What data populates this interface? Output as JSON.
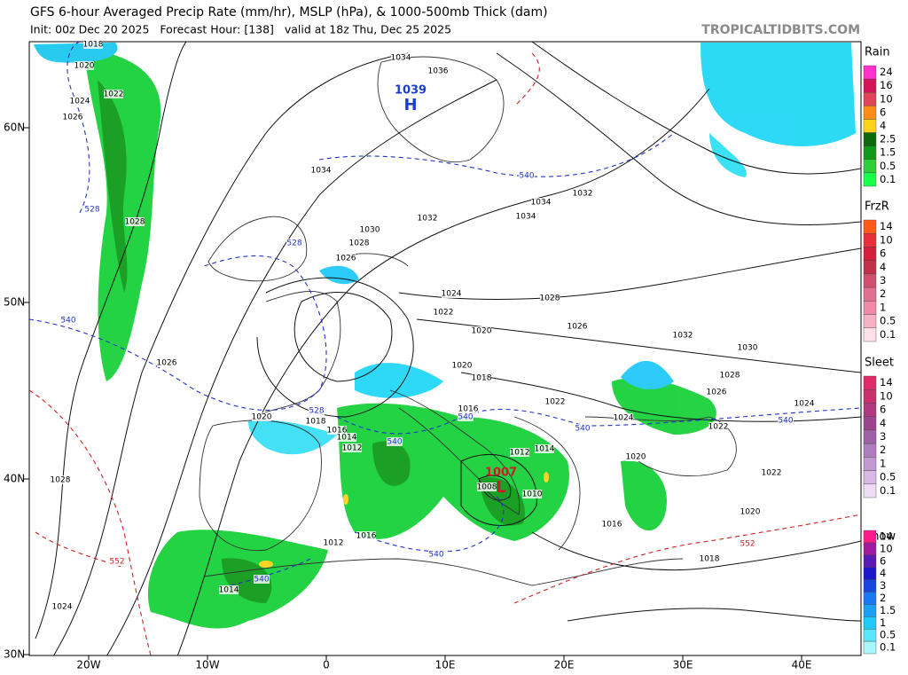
{
  "header": {
    "title": "GFS 6-hour Averaged Precip Rate (mm/hr), MSLP (hPa), & 1000-500mb Thick (dam)",
    "subtitle": "Init: 00z Dec 20 2025   Forecast Hour: [138]   valid at 18z Thu, Dec 25 2025",
    "site": "TROPICALTIDBITS.COM"
  },
  "map": {
    "lat_labels": [
      "60N",
      "50N",
      "40N",
      "30N"
    ],
    "lon_labels": [
      "20W",
      "10W",
      "0",
      "10E",
      "20E",
      "30E",
      "40E"
    ],
    "pressure_labels": [
      "1034",
      "1036",
      "1018",
      "1020",
      "1022",
      "1024",
      "1026",
      "1028",
      "1034",
      "1032",
      "1034",
      "1032",
      "1034",
      "1030",
      "1028",
      "1026",
      "1024",
      "1022",
      "1020",
      "1028",
      "1026",
      "1032",
      "1030",
      "1028",
      "1026",
      "1024",
      "1022",
      "1022",
      "1024",
      "1020",
      "1018",
      "1016",
      "1026",
      "1020",
      "1018",
      "1016",
      "1014",
      "1012",
      "1012",
      "1014",
      "1010",
      "1008",
      "1020",
      "1022",
      "1020",
      "1018",
      "1016",
      "1016",
      "1012",
      "1014",
      "1024",
      "1028"
    ],
    "thickness_labels": [
      "528",
      "540",
      "528",
      "528",
      "540",
      "540",
      "540",
      "540",
      "540",
      "540",
      "540",
      "552",
      "552"
    ],
    "centers": [
      {
        "value": "1039",
        "symbol": "H"
      },
      {
        "value": "1007",
        "symbol": "L"
      }
    ]
  },
  "legend": [
    {
      "title": "Rain",
      "levels": [
        "24",
        "16",
        "10",
        "6",
        "4",
        "2.5",
        "1.5",
        "0.5",
        "0.1"
      ],
      "colors": [
        "#ff33cc",
        "#d4145a",
        "#e0445a",
        "#ff8c1a",
        "#ffd21a",
        "#0b6b0b",
        "#0f9a1a",
        "#2fcf3a",
        "#19ff4c"
      ]
    },
    {
      "title": "FrzR",
      "levels": [
        "14",
        "10",
        "6",
        "4",
        "3",
        "2",
        "1",
        "0.5",
        "0.1"
      ],
      "colors": [
        "#ff5a1a",
        "#e8303a",
        "#d4203a",
        "#c2304a",
        "#d05070",
        "#e07090",
        "#f08aa8",
        "#f8b0c4",
        "#fde0e8"
      ]
    },
    {
      "title": "Sleet",
      "levels": [
        "14",
        "10",
        "6",
        "4",
        "3",
        "2",
        "1",
        "0.5",
        "0.1"
      ],
      "colors": [
        "#e02a6a",
        "#c8306e",
        "#b03a80",
        "#9c4490",
        "#a060a8",
        "#b07cc0",
        "#c298d4",
        "#d8b8e4",
        "#eedcf4"
      ]
    },
    {
      "title": "Snow",
      "levels": [
        "14",
        "10",
        "6",
        "4",
        "3",
        "2",
        "1.5",
        "1",
        "0.5",
        "0.1"
      ],
      "colors": [
        "#ff1a8c",
        "#a01aa0",
        "#5a1ab4",
        "#1a1ac8",
        "#1a46e0",
        "#1a78f0",
        "#1aa0f8",
        "#22c8fa",
        "#5ae6fc",
        "#a8f6fe"
      ]
    }
  ]
}
